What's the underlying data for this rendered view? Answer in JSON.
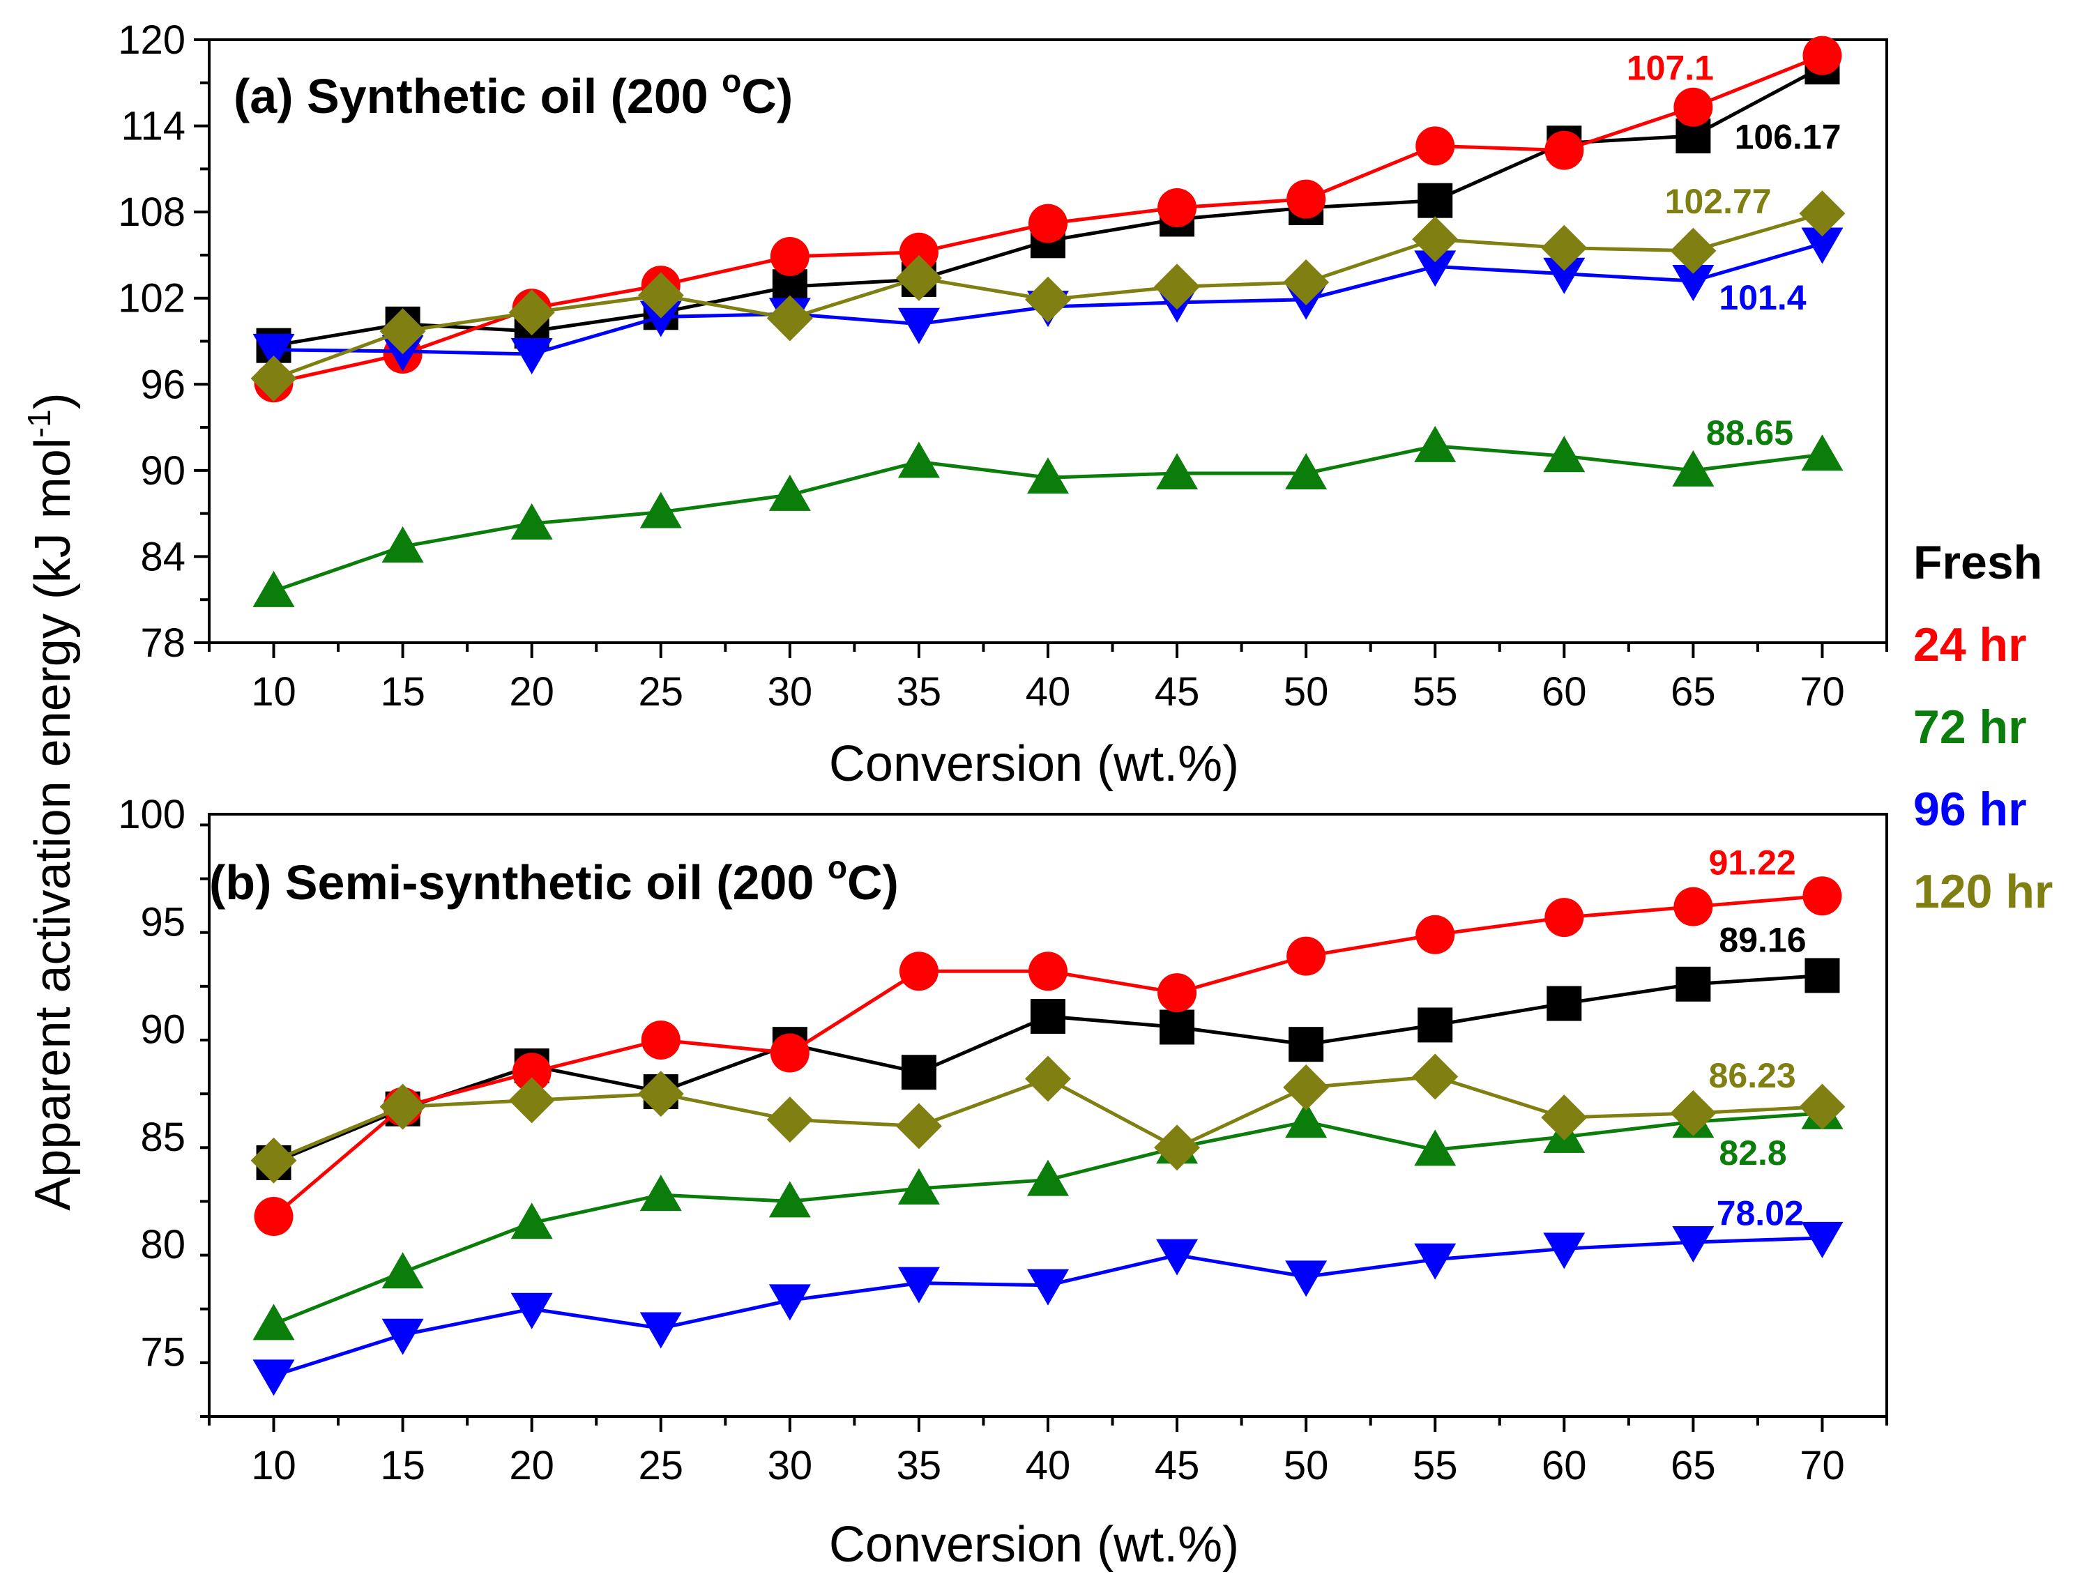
{
  "colors": {
    "fresh": "#000000",
    "h24": "#ff0000",
    "h72": "#0a7d0a",
    "h96": "#0000ff",
    "h120": "#7f7f12"
  },
  "y_axis_title": "Apparent activation energy (kJ mol",
  "y_axis_title_sup": "-1",
  "y_axis_title_end": ")",
  "legend": [
    {
      "key": "fresh",
      "label": "Fresh"
    },
    {
      "key": "h24",
      "label": "24 hr"
    },
    {
      "key": "h72",
      "label": "72 hr"
    },
    {
      "key": "h96",
      "label": "96 hr"
    },
    {
      "key": "h120",
      "label": "120 hr"
    }
  ],
  "chart_data": [
    {
      "type": "line",
      "title_main": "(a) Synthetic oil (200 ",
      "title_sup": "o",
      "title_end": "C)",
      "xlabel": "Conversion (wt.%)",
      "ylabel": "Apparent activation energy (kJ mol-1)",
      "xlim": [
        7.5,
        72.5
      ],
      "ylim": [
        78,
        120
      ],
      "yticks": [
        78,
        84,
        90,
        96,
        102,
        108,
        114,
        120
      ],
      "x": [
        10,
        15,
        20,
        25,
        30,
        35,
        40,
        45,
        50,
        55,
        60,
        65,
        70
      ],
      "series": [
        {
          "name": "Fresh",
          "key": "fresh",
          "marker": "square",
          "values": [
            98.7,
            100.2,
            99.7,
            101.0,
            102.8,
            103.3,
            106.0,
            107.5,
            108.3,
            108.8,
            112.8,
            113.3,
            118.1
          ]
        },
        {
          "name": "24 hr",
          "key": "h24",
          "marker": "circle",
          "values": [
            96.1,
            98.1,
            101.3,
            102.9,
            104.9,
            105.2,
            107.2,
            108.3,
            108.9,
            112.6,
            112.3,
            115.3,
            118.9
          ]
        },
        {
          "name": "72 hr",
          "key": "h72",
          "marker": "triangle-up",
          "values": [
            81.6,
            84.7,
            86.3,
            87.1,
            88.3,
            90.6,
            89.5,
            89.8,
            89.8,
            91.7,
            91.0,
            90.0,
            91.1
          ]
        },
        {
          "name": "96 hr",
          "key": "h96",
          "marker": "triangle-down",
          "values": [
            98.4,
            98.3,
            98.1,
            100.7,
            100.9,
            100.2,
            101.4,
            101.7,
            101.9,
            104.2,
            103.7,
            103.2,
            105.8
          ]
        },
        {
          "name": "120 hr",
          "key": "h120",
          "marker": "diamond",
          "values": [
            96.4,
            99.7,
            101.0,
            102.2,
            100.6,
            103.4,
            101.9,
            102.8,
            103.1,
            106.1,
            105.5,
            105.3,
            107.9
          ]
        }
      ],
      "annotations": [
        {
          "text": "107.1",
          "key": "h24",
          "x": 65.8,
          "y": 117.2,
          "anchor": "end"
        },
        {
          "text": "106.17",
          "key": "fresh",
          "x": 66.6,
          "y": 112.4,
          "anchor": "start"
        },
        {
          "text": "102.77",
          "key": "h120",
          "x": 63.9,
          "y": 107.9,
          "anchor": "start"
        },
        {
          "text": "101.4",
          "key": "h96",
          "x": 66.0,
          "y": 101.2,
          "anchor": "start"
        },
        {
          "text": "88.65",
          "key": "h72",
          "x": 65.5,
          "y": 91.8,
          "anchor": "start"
        }
      ]
    },
    {
      "type": "line",
      "title_main": "(b) Semi-synthetic oil (200 ",
      "title_sup": "o",
      "title_end": "C)",
      "xlabel": "Conversion (wt.%)",
      "ylabel": "Apparent activation energy (kJ mol-1)",
      "xlim": [
        7.5,
        72.5
      ],
      "ylim": [
        72,
        100
      ],
      "yticks": [
        75,
        80,
        85,
        90,
        95,
        100
      ],
      "x": [
        10,
        15,
        20,
        25,
        30,
        35,
        40,
        45,
        50,
        55,
        60,
        65,
        70
      ],
      "series": [
        {
          "name": "Fresh",
          "key": "fresh",
          "marker": "square",
          "values": [
            83.8,
            86.3,
            88.3,
            87.1,
            89.3,
            88.0,
            90.6,
            90.1,
            89.3,
            90.2,
            91.2,
            92.1,
            92.5
          ]
        },
        {
          "name": "24 hr",
          "key": "h24",
          "marker": "circle",
          "values": [
            81.3,
            86.4,
            88.0,
            89.5,
            88.9,
            92.7,
            92.7,
            91.7,
            93.4,
            94.4,
            95.2,
            95.7,
            96.2
          ]
        },
        {
          "name": "72 hr",
          "key": "h72",
          "marker": "triangle-up",
          "values": [
            76.3,
            78.7,
            81.0,
            82.3,
            82.0,
            82.6,
            83.0,
            84.5,
            85.7,
            84.4,
            85.0,
            85.7,
            86.1
          ]
        },
        {
          "name": "96 hr",
          "key": "h96",
          "marker": "triangle-down",
          "values": [
            73.9,
            75.8,
            77.0,
            76.1,
            77.4,
            78.2,
            78.1,
            79.5,
            78.5,
            79.3,
            79.8,
            80.1,
            80.3
          ]
        },
        {
          "name": "120 hr",
          "key": "h120",
          "marker": "diamond",
          "values": [
            83.9,
            86.4,
            86.7,
            87.0,
            85.8,
            85.5,
            87.7,
            84.5,
            87.3,
            87.8,
            85.9,
            86.1,
            86.4
          ]
        }
      ],
      "annotations": [
        {
          "text": "91.22",
          "key": "h24",
          "x": 65.6,
          "y": 97.2,
          "anchor": "start"
        },
        {
          "text": "89.16",
          "key": "fresh",
          "x": 66.0,
          "y": 93.6,
          "anchor": "start"
        },
        {
          "text": "86.23",
          "key": "h120",
          "x": 65.6,
          "y": 87.3,
          "anchor": "start"
        },
        {
          "text": "82.8",
          "key": "h72",
          "x": 66.0,
          "y": 83.7,
          "anchor": "start"
        },
        {
          "text": "78.02",
          "key": "h96",
          "x": 65.9,
          "y": 80.9,
          "anchor": "start"
        }
      ]
    }
  ]
}
